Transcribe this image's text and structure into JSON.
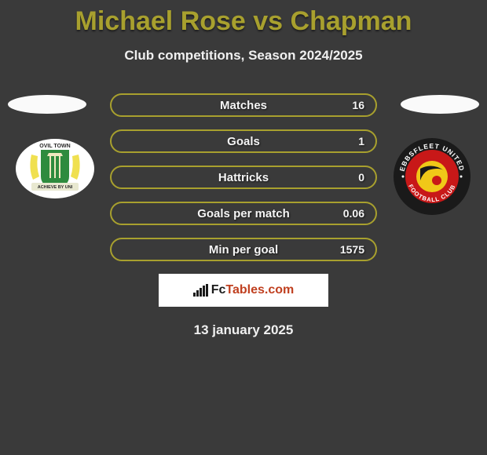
{
  "title": {
    "text": "Michael Rose vs Chapman",
    "color": "#a8a02e"
  },
  "subtitle": "Club competitions, Season 2024/2025",
  "stats": {
    "border_color": "#a8a02e",
    "background_color": "#3a3a3a",
    "rows": [
      {
        "label": "Matches",
        "value": "16"
      },
      {
        "label": "Goals",
        "value": "1"
      },
      {
        "label": "Hattricks",
        "value": "0"
      },
      {
        "label": "Goals per match",
        "value": "0.06"
      },
      {
        "label": "Min per goal",
        "value": "1575"
      }
    ]
  },
  "brand": {
    "prefix_color": "#1a1a1a",
    "prefix": "Fc",
    "suffix": "Tables.com",
    "suffix_color": "#c04020"
  },
  "date": "13 january 2025",
  "badges": {
    "left": {
      "outer_color": "#ffffff",
      "shield_color": "#2e8b3e",
      "banner_color": "#e8e8d0",
      "top_text": "OVIL TOWN",
      "banner_text": "ACHIEVE BY UNI",
      "side_color": "#f0e050"
    },
    "right": {
      "outer_ring_color": "#1a1a1a",
      "inner_ring_color": "#c81818",
      "center_color": "#f0c818",
      "swoosh_color": "#1a1a1a",
      "top_text": "EBBSFLEET UNITED",
      "bottom_text": "FOOTBALL CLUB",
      "text_color": "#ffffff"
    }
  }
}
